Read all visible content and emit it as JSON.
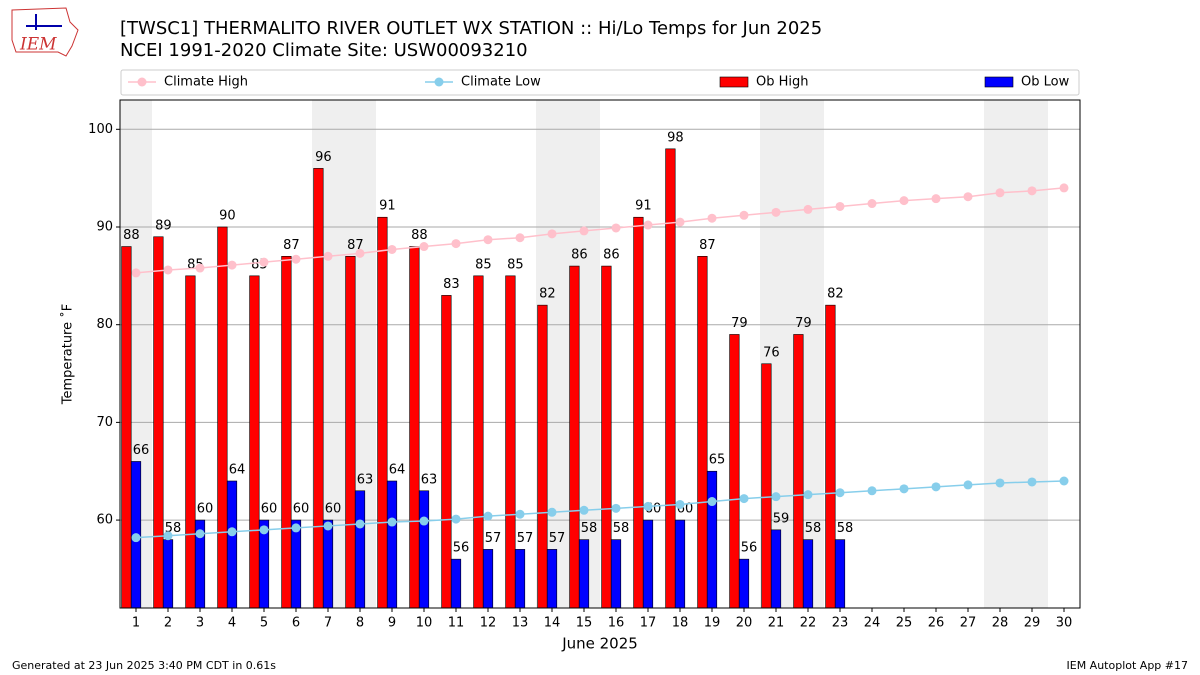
{
  "chart_data": {
    "type": "bar_line",
    "title": "[TWSC1] THERMALITO RIVER OUTLET WX STATION :: Hi/Lo Temps for Jun 2025",
    "subtitle": "NCEI 1991-2020 Climate Site: USW00093210",
    "xlabel": "June 2025",
    "ylabel": "Temperature ˚F",
    "logo_text": "IEM",
    "footer_left": "Generated at 23 Jun 2025 3:40 PM CDT in 0.61s",
    "footer_right": "IEM Autoplot App #17",
    "x": [
      1,
      2,
      3,
      4,
      5,
      6,
      7,
      8,
      9,
      10,
      11,
      12,
      13,
      14,
      15,
      16,
      17,
      18,
      19,
      20,
      21,
      22,
      23,
      24,
      25,
      26,
      27,
      28,
      29,
      30
    ],
    "xlim": [
      0.5,
      30.5
    ],
    "xticks": [
      1,
      2,
      3,
      4,
      5,
      6,
      7,
      8,
      9,
      10,
      11,
      12,
      13,
      14,
      15,
      16,
      17,
      18,
      19,
      20,
      21,
      22,
      23,
      24,
      25,
      26,
      27,
      28,
      29,
      30
    ],
    "ylim": [
      51,
      103
    ],
    "yticks": [
      60,
      70,
      80,
      90,
      100
    ],
    "grid": true,
    "shaded_days": [
      1,
      7,
      8,
      14,
      15,
      21,
      22,
      28,
      29
    ],
    "series": [
      {
        "name": "Climate High",
        "kind": "line",
        "color": "#ffc0cb",
        "values": [
          85.3,
          85.6,
          85.8,
          86.1,
          86.4,
          86.7,
          87.0,
          87.3,
          87.7,
          88.0,
          88.3,
          88.7,
          88.9,
          89.3,
          89.6,
          89.9,
          90.2,
          90.5,
          90.9,
          91.2,
          91.5,
          91.8,
          92.1,
          92.4,
          92.7,
          92.9,
          93.1,
          93.5,
          93.7,
          94.0
        ]
      },
      {
        "name": "Climate Low",
        "kind": "line",
        "color": "#87ceeb",
        "values": [
          58.2,
          58.4,
          58.6,
          58.8,
          59.0,
          59.2,
          59.4,
          59.6,
          59.8,
          59.9,
          60.1,
          60.4,
          60.6,
          60.8,
          61.0,
          61.2,
          61.4,
          61.6,
          61.9,
          62.2,
          62.4,
          62.6,
          62.8,
          63.0,
          63.2,
          63.4,
          63.6,
          63.8,
          63.9,
          64.0
        ]
      },
      {
        "name": "Ob High",
        "kind": "bar",
        "color": "#ff0000",
        "values": [
          88,
          89,
          85,
          90,
          85,
          87,
          96,
          87,
          91,
          88,
          83,
          85,
          85,
          82,
          86,
          86,
          91,
          98,
          87,
          79,
          76,
          79,
          82,
          null,
          null,
          null,
          null,
          null,
          null,
          null
        ]
      },
      {
        "name": "Ob Low",
        "kind": "bar",
        "color": "#0000ff",
        "values": [
          66,
          58,
          60,
          64,
          60,
          60,
          60,
          63,
          64,
          63,
          56,
          57,
          57,
          57,
          58,
          58,
          60,
          60,
          65,
          56,
          59,
          58,
          58,
          null,
          null,
          null,
          null,
          null,
          null,
          null
        ]
      }
    ]
  }
}
